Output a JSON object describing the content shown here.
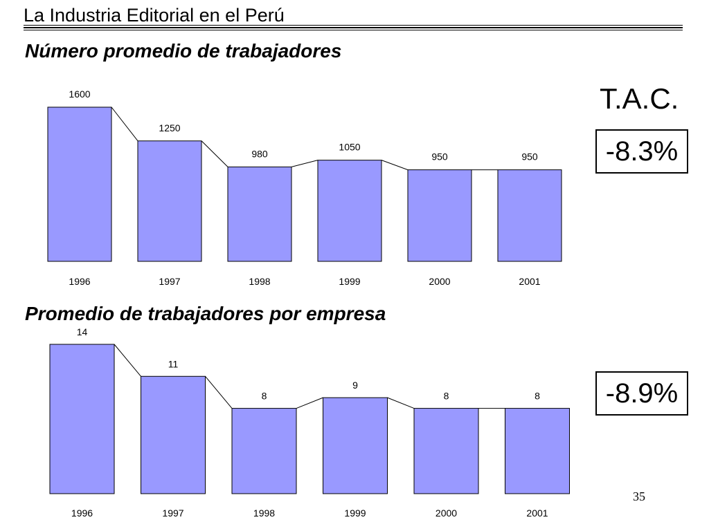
{
  "header": {
    "title": "La Industria Editorial en el Perú"
  },
  "tac": {
    "label": "T.A.C.",
    "value_1": "-8.3%",
    "value_2": "-8.9%"
  },
  "page_number": "35",
  "colors": {
    "bar_fill": "#9999ff",
    "bar_stroke": "#000000"
  },
  "chart_data": [
    {
      "type": "bar",
      "title": "Número promedio de trabajadores",
      "categories": [
        "1996",
        "1997",
        "1998",
        "1999",
        "2000",
        "2001"
      ],
      "values": [
        1600,
        1250,
        980,
        1050,
        950,
        950
      ],
      "value_labels": [
        "1600",
        "1250",
        "980",
        "1050",
        "950",
        "950"
      ],
      "xlabel": "",
      "ylabel": "",
      "ylim": [
        0,
        1600
      ],
      "grid": false,
      "legend": "none",
      "connector_lines": true
    },
    {
      "type": "bar",
      "title": "Promedio de trabajadores por empresa",
      "categories": [
        "1996",
        "1997",
        "1998",
        "1999",
        "2000",
        "2001"
      ],
      "values": [
        14,
        11,
        8,
        9,
        8,
        8
      ],
      "value_labels": [
        "14",
        "11",
        "8",
        "9",
        "8",
        "8"
      ],
      "xlabel": "",
      "ylabel": "",
      "ylim": [
        0,
        14
      ],
      "grid": false,
      "legend": "none",
      "connector_lines": true
    }
  ]
}
